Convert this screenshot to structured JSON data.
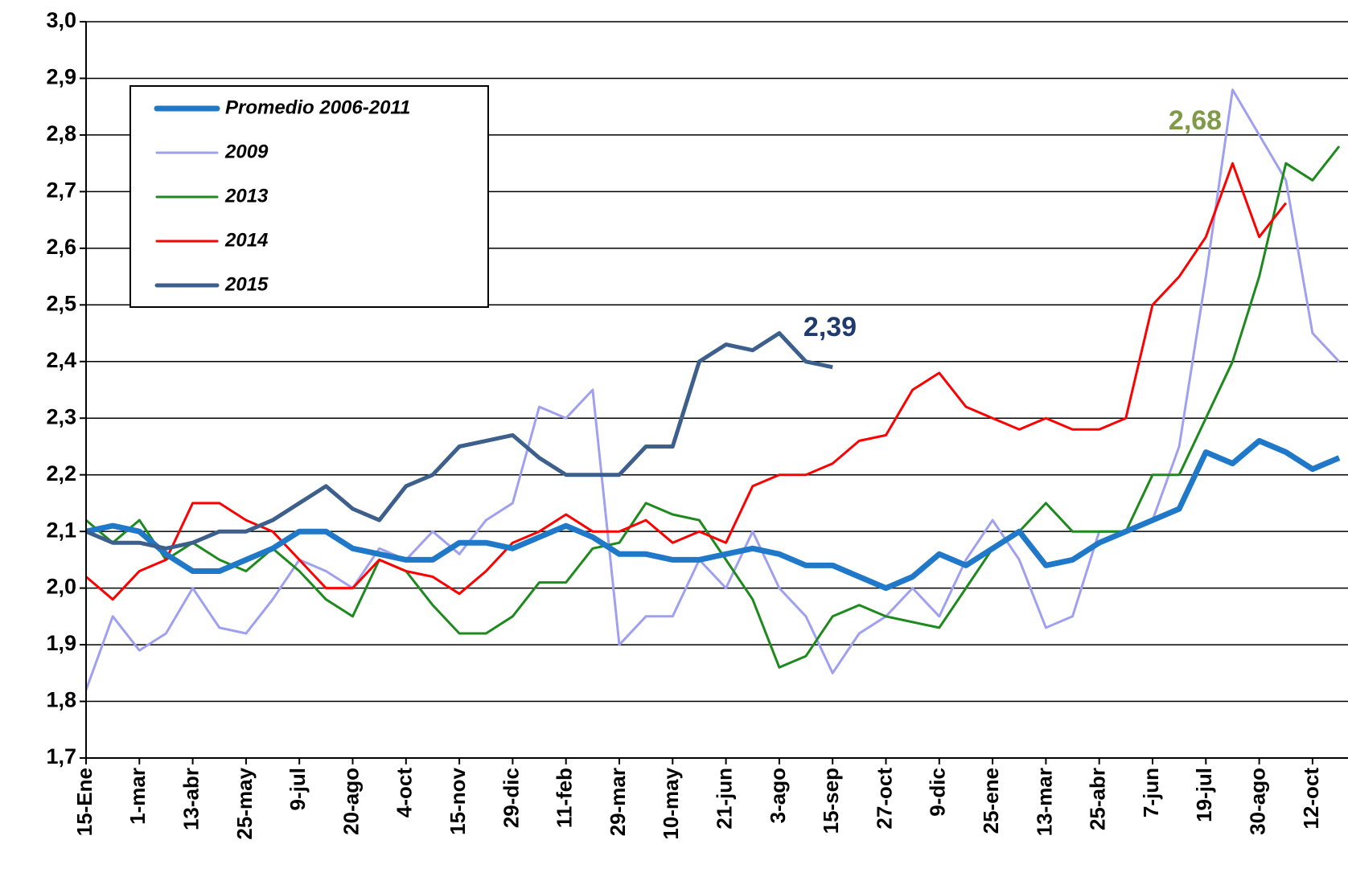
{
  "chart_data": {
    "type": "line",
    "categories": [
      "15-Ene",
      null,
      "1-mar",
      null,
      "13-abr",
      null,
      "25-may",
      null,
      "9-jul",
      null,
      "20-ago",
      null,
      "4-oct",
      null,
      "15-nov",
      null,
      "29-dic",
      null,
      "11-feb",
      null,
      "29-mar",
      null,
      "10-may",
      null,
      "21-jun",
      null,
      "3-ago",
      null,
      "15-sep",
      null,
      "27-oct",
      null,
      "9-dic",
      null,
      "25-ene",
      null,
      "13-mar",
      null,
      "25-abr",
      null,
      "7-jun",
      null,
      "19-jul",
      null,
      "30-ago",
      null,
      "12-oct",
      null
    ],
    "series": [
      {
        "name": "Promedio 2006-2011",
        "color": "#1f78c8",
        "values": [
          2.1,
          2.11,
          2.1,
          2.06,
          2.03,
          2.03,
          2.05,
          2.07,
          2.1,
          2.1,
          2.07,
          2.06,
          2.05,
          2.05,
          2.08,
          2.08,
          2.07,
          2.09,
          2.11,
          2.09,
          2.06,
          2.06,
          2.05,
          2.05,
          2.06,
          2.07,
          2.06,
          2.04,
          2.04,
          2.02,
          2.0,
          2.02,
          2.06,
          2.04,
          2.07,
          2.1,
          2.04,
          2.05,
          2.08,
          2.1,
          2.12,
          2.14,
          2.24,
          2.22,
          2.26,
          2.24,
          2.21,
          2.23
        ]
      },
      {
        "name": "2009",
        "color": "#a0a0f0",
        "values": [
          1.82,
          1.95,
          1.89,
          1.92,
          2.0,
          1.93,
          1.92,
          1.98,
          2.05,
          2.03,
          2.0,
          2.07,
          2.05,
          2.1,
          2.06,
          2.12,
          2.15,
          2.32,
          2.3,
          2.35,
          1.9,
          1.95,
          1.95,
          2.05,
          2.0,
          2.1,
          2.0,
          1.95,
          1.85,
          1.92,
          1.95,
          2.0,
          1.95,
          2.05,
          2.12,
          2.05,
          1.93,
          1.95,
          2.1,
          2.1,
          2.12,
          2.25,
          2.55,
          2.88,
          2.8,
          2.72,
          2.45,
          2.4
        ]
      },
      {
        "name": "2013",
        "color": "#1e8a1e",
        "values": [
          2.12,
          2.08,
          2.12,
          2.05,
          2.08,
          2.05,
          2.03,
          2.07,
          2.03,
          1.98,
          1.95,
          2.05,
          2.03,
          1.97,
          1.92,
          1.92,
          1.95,
          2.01,
          2.01,
          2.07,
          2.08,
          2.15,
          2.13,
          2.12,
          2.05,
          1.98,
          1.86,
          1.88,
          1.95,
          1.97,
          1.95,
          1.94,
          1.93,
          2.0,
          2.07,
          2.1,
          2.15,
          2.1,
          2.1,
          2.1,
          2.2,
          2.2,
          2.3,
          2.4,
          2.55,
          2.75,
          2.72,
          2.78
        ]
      },
      {
        "name": "2014",
        "color": "#ff0000",
        "values": [
          2.02,
          1.98,
          2.03,
          2.05,
          2.15,
          2.15,
          2.12,
          2.1,
          2.05,
          2.0,
          2.0,
          2.05,
          2.03,
          2.02,
          1.99,
          2.03,
          2.08,
          2.1,
          2.13,
          2.1,
          2.1,
          2.12,
          2.08,
          2.1,
          2.08,
          2.18,
          2.2,
          2.2,
          2.22,
          2.26,
          2.27,
          2.35,
          2.38,
          2.32,
          2.3,
          2.28,
          2.3,
          2.28,
          2.28,
          2.3,
          2.5,
          2.55,
          2.62,
          2.75,
          2.62,
          2.68,
          null,
          null
        ]
      },
      {
        "name": "2015",
        "color": "#3d5f8c",
        "values": [
          2.1,
          2.08,
          2.08,
          2.07,
          2.08,
          2.1,
          2.1,
          2.12,
          2.15,
          2.18,
          2.14,
          2.12,
          2.18,
          2.2,
          2.25,
          2.26,
          2.27,
          2.23,
          2.2,
          2.2,
          2.2,
          2.25,
          2.25,
          2.4,
          2.43,
          2.42,
          2.45,
          2.4,
          2.39,
          null,
          null,
          null,
          null,
          null,
          null,
          null,
          null,
          null,
          null,
          null,
          null,
          null,
          null,
          null,
          null,
          null,
          null,
          null
        ]
      }
    ],
    "annotations": [
      {
        "text": "2,39",
        "color": "#1f3a6e"
      },
      {
        "text": "2,68",
        "color": "#7f9a48"
      }
    ],
    "ylim": [
      1.7,
      3.0
    ],
    "yticks": [
      {
        "value": 1.7,
        "label": "1,7"
      },
      {
        "value": 1.8,
        "label": "1,8"
      },
      {
        "value": 1.9,
        "label": "1,9"
      },
      {
        "value": 2.0,
        "label": "2,0"
      },
      {
        "value": 2.1,
        "label": "2,1"
      },
      {
        "value": 2.2,
        "label": "2,2"
      },
      {
        "value": 2.3,
        "label": "2,3"
      },
      {
        "value": 2.4,
        "label": "2,4"
      },
      {
        "value": 2.5,
        "label": "2,5"
      },
      {
        "value": 2.6,
        "label": "2,6"
      },
      {
        "value": 2.7,
        "label": "2,7"
      },
      {
        "value": 2.8,
        "label": "2,8"
      },
      {
        "value": 2.9,
        "label": "2,9"
      },
      {
        "value": 3.0,
        "label": "3,0"
      }
    ],
    "grid": true,
    "legend": "top-left"
  }
}
